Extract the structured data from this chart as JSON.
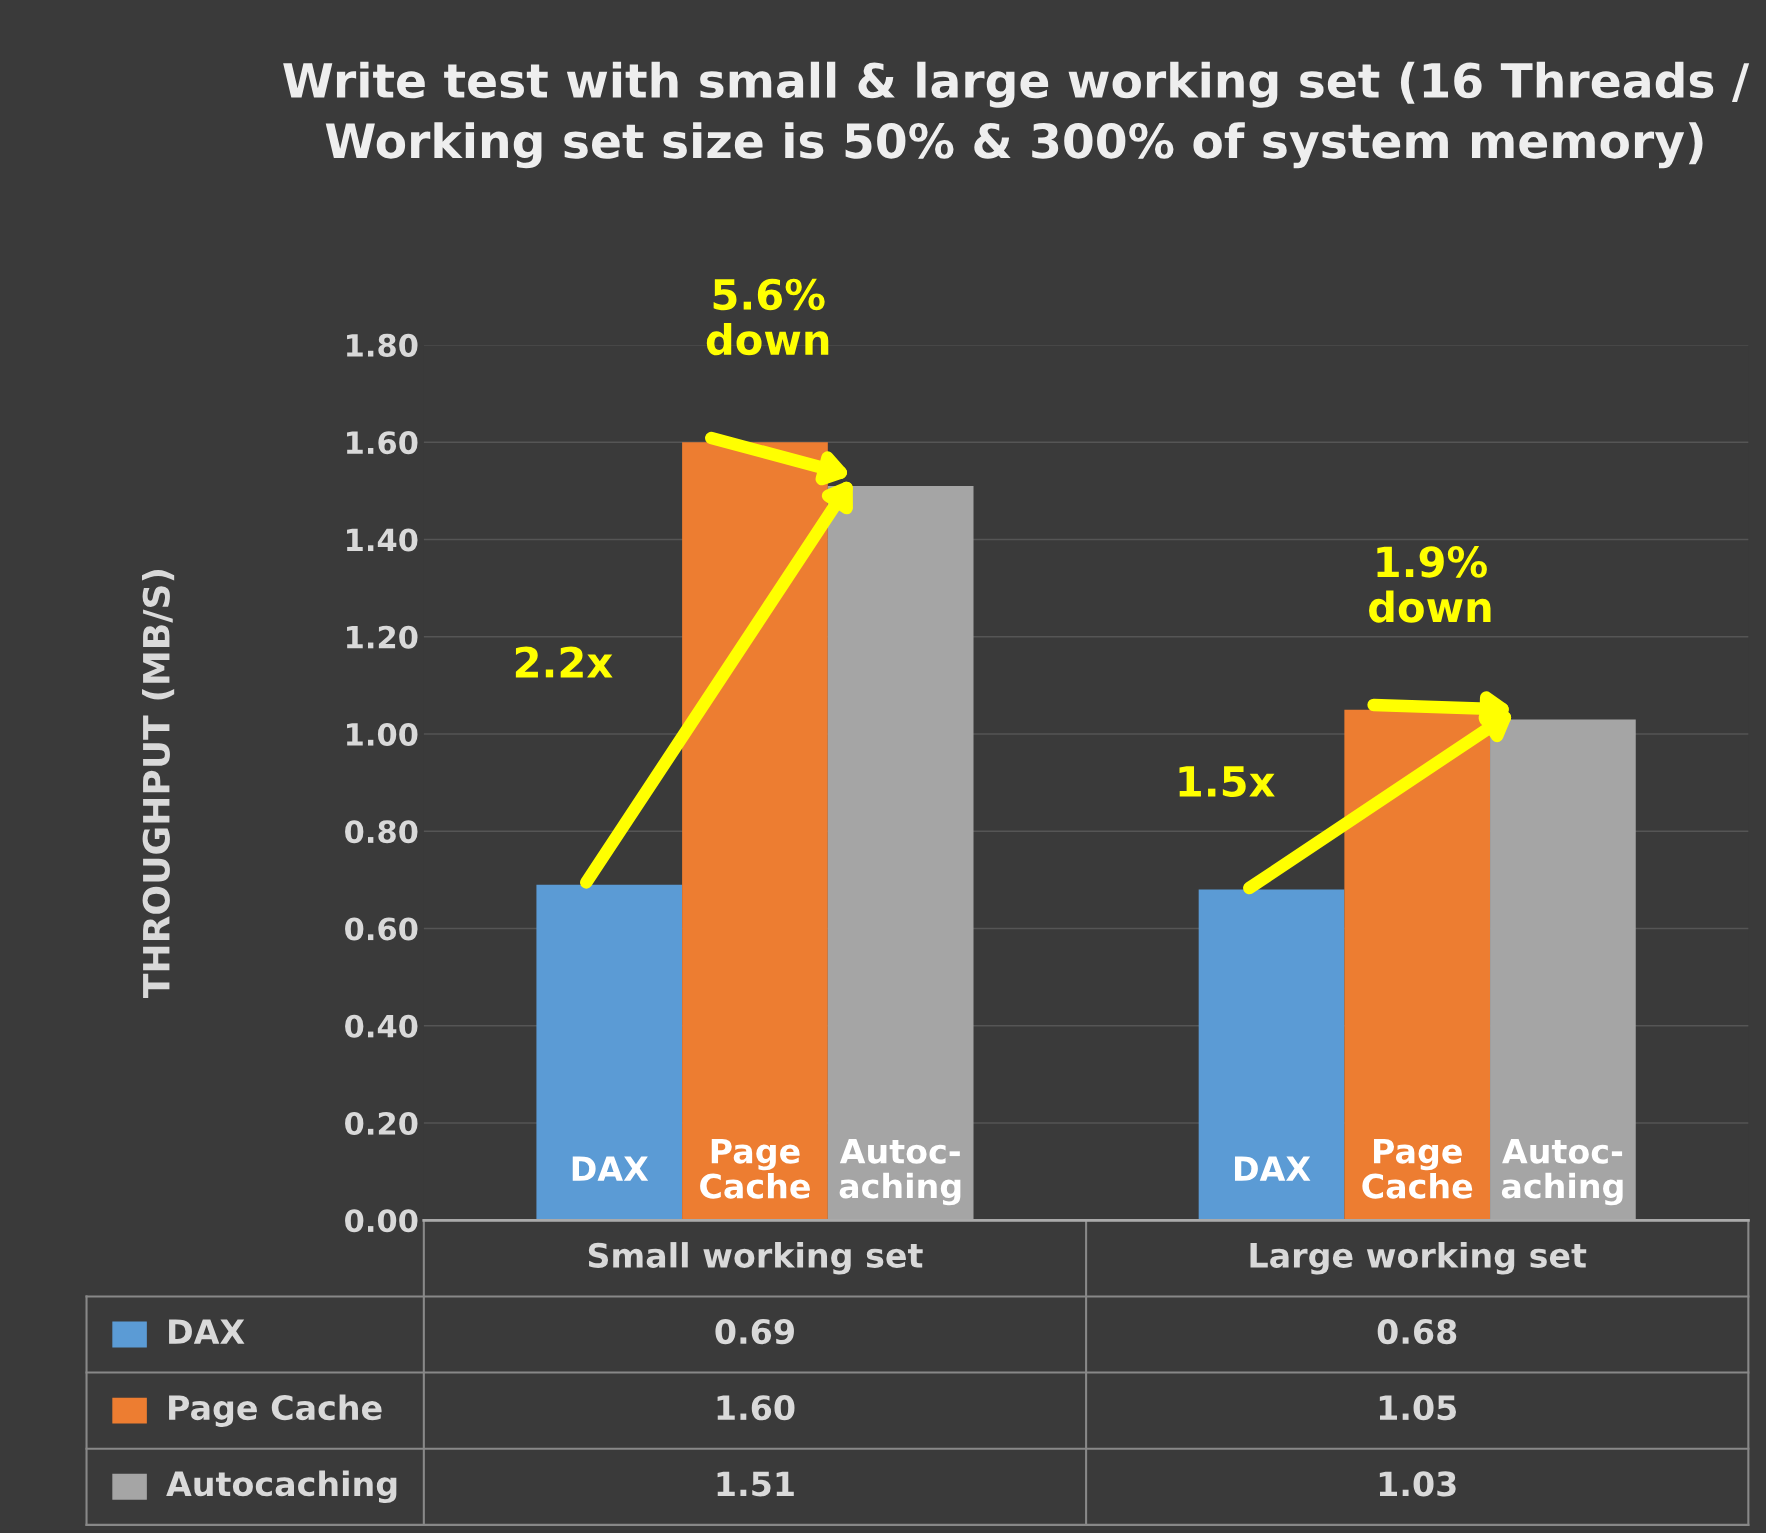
{
  "chart_data": {
    "type": "bar",
    "title": "Write test with small & large working set (16 Threads / Working set size is 50% & 300% of system memory)",
    "ylabel": "THROUGHPUT (MB/S)",
    "categories": [
      "Small working set",
      "Large working set"
    ],
    "series": [
      {
        "name": "DAX",
        "color": "#5b9bd5",
        "values": [
          0.69,
          0.68
        ],
        "value_labels": [
          "0.69",
          "0.68"
        ]
      },
      {
        "name": "Page Cache",
        "color": "#ed7d31",
        "values": [
          1.6,
          1.05
        ],
        "value_labels": [
          "1.60",
          "1.05"
        ]
      },
      {
        "name": "Autocaching",
        "color": "#a5a5a5",
        "values": [
          1.51,
          1.03
        ],
        "value_labels": [
          "1.51",
          "1.03"
        ]
      }
    ],
    "ylim": [
      0,
      1.8
    ],
    "yticks": [
      {
        "value": 0,
        "label": "0.00"
      },
      {
        "value": 0.2,
        "label": "0.20"
      },
      {
        "value": 0.4,
        "label": "0.40"
      },
      {
        "value": 0.6,
        "label": "0.60"
      },
      {
        "value": 0.8,
        "label": "0.80"
      },
      {
        "value": 1.0,
        "label": "1.00"
      },
      {
        "value": 1.2,
        "label": "1.20"
      },
      {
        "value": 1.4,
        "label": "1.40"
      },
      {
        "value": 1.6,
        "label": "1.60"
      },
      {
        "value": 1.8,
        "label": "1.80"
      }
    ],
    "grid": "y",
    "legend": "bottom",
    "annotations": [
      "DAX",
      "Page Cache",
      "Autoc-aching",
      "DAX",
      "Page Cache",
      "Autoc-aching",
      "2.2x",
      "5.6% down",
      "1.5x",
      "1.9% down"
    ]
  }
}
